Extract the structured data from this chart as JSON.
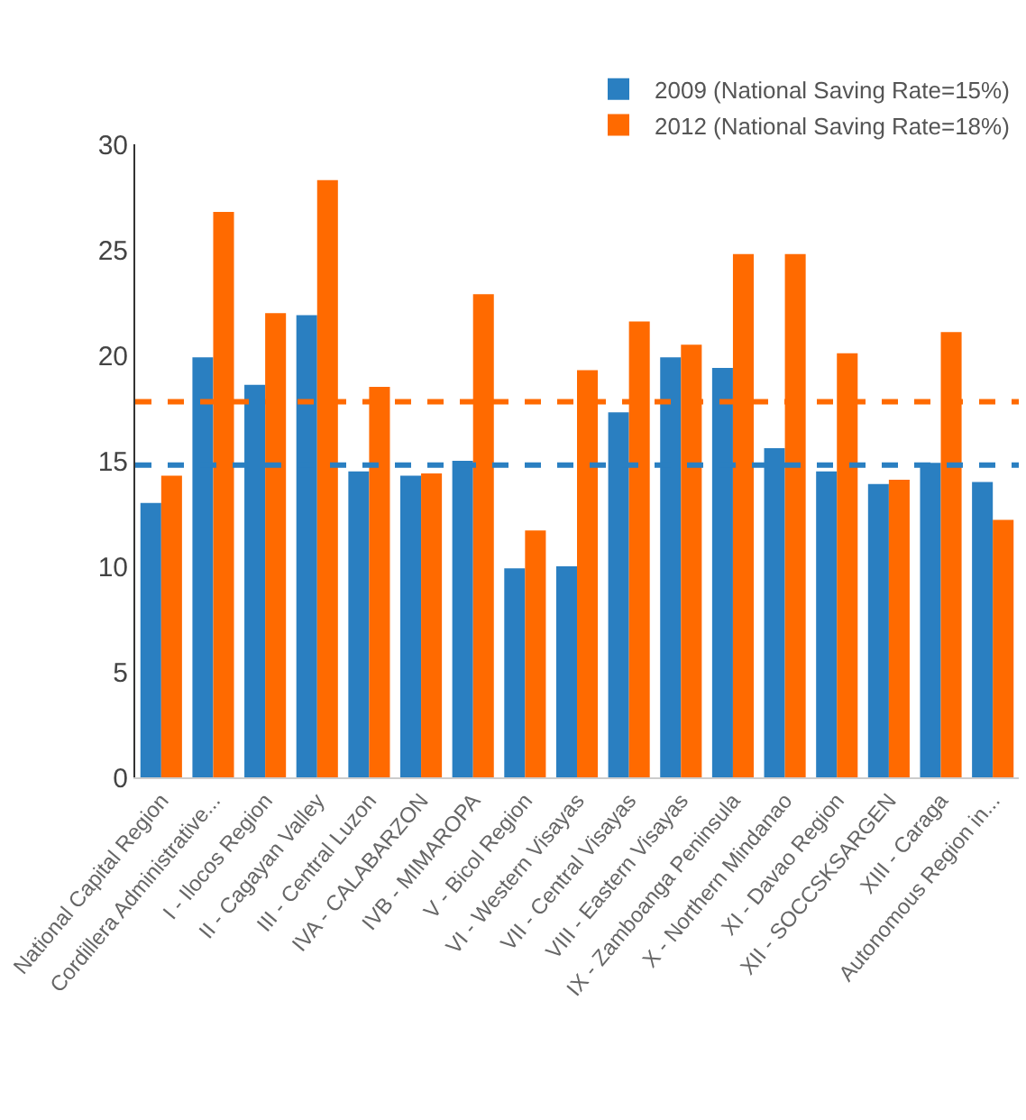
{
  "chart_data": {
    "type": "bar",
    "categories": [
      "National Capital Region",
      "Cordillera Administrative...",
      "I - Ilocos Region",
      "II - Cagayan Valley",
      "III - Central Luzon",
      "IVA - CALABARZON",
      "IVB - MIMAROPA",
      "V - Bicol Region",
      "VI - Western Visayas",
      "VII - Central Visayas",
      "VIII - Eastern Visayas",
      "IX - Zamboanga Peninsula",
      "X - Northern Mindanao",
      "XI - Davao Region",
      "XII - SOCCSKSARGEN",
      "XIII - Caraga",
      "Autonomous Region in..."
    ],
    "series": [
      {
        "name": "2009 (National Saving Rate=15%)",
        "color": "#2a7fc1",
        "values": [
          13.0,
          19.9,
          18.6,
          21.9,
          14.5,
          14.3,
          15.0,
          9.9,
          10.0,
          17.3,
          19.9,
          19.4,
          15.6,
          14.5,
          13.9,
          14.9,
          14.0
        ]
      },
      {
        "name": "2012 (National Saving Rate=18%)",
        "color": "#ff6a00",
        "values": [
          14.3,
          26.8,
          22.0,
          28.3,
          18.5,
          14.4,
          22.9,
          11.7,
          19.3,
          21.6,
          20.5,
          24.8,
          24.8,
          20.1,
          14.1,
          21.1,
          12.2
        ]
      }
    ],
    "ylim": [
      0,
      30
    ],
    "yticks": [
      0,
      5,
      10,
      15,
      20,
      25,
      30
    ],
    "grid": false,
    "legend": "top right",
    "ref_lines": [
      {
        "axis": "y",
        "value": 14.8,
        "color": "#2a7fc1",
        "line_style": "dashed"
      },
      {
        "axis": "y",
        "value": 17.8,
        "color": "#ff6a00",
        "line_style": "dashed"
      }
    ]
  }
}
